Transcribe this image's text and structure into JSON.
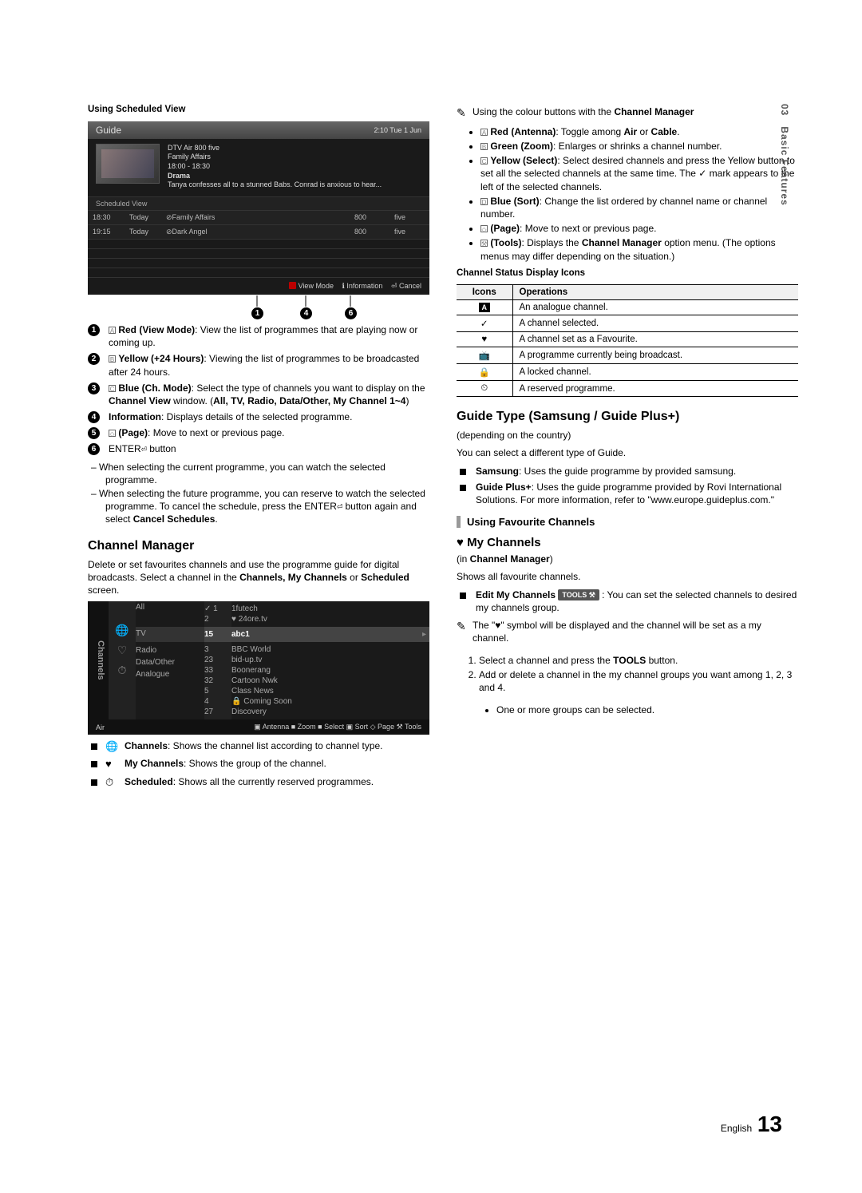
{
  "page": {
    "chapter": "03",
    "side_label": "Basic Features",
    "lang": "English",
    "num": "13"
  },
  "left": {
    "sched_title": "Using Scheduled View",
    "guide": {
      "title": "Guide",
      "clock": "2:10 Tue 1 Jun",
      "meta1": "DTV Air 800 five",
      "meta2": "Family Affairs",
      "meta3": "18:00 - 18:30",
      "meta4": "Drama",
      "meta5": "Tanya confesses all to a stunned Babs. Conrad is anxious to hear...",
      "sched_label": "Scheduled View",
      "rows": [
        {
          "t": "18:30",
          "d": "Today",
          "p": "⊘Family Affairs",
          "n": "800",
          "c": "five"
        },
        {
          "t": "19:15",
          "d": "Today",
          "p": "⊘Dark Angel",
          "n": "800",
          "c": "five"
        }
      ],
      "footer": {
        "a": "View Mode",
        "b": "Information",
        "c": "Cancel"
      },
      "arrow_nums": [
        "1",
        "4",
        "6"
      ]
    },
    "num_items": [
      {
        "n": "1",
        "pre": "A",
        "label": "Red (View Mode)",
        "text": ": View the list of programmes that are playing now or coming up."
      },
      {
        "n": "2",
        "pre": "B",
        "label": "Yellow (+24 Hours)",
        "text": ": Viewing the list of programmes to be broadcasted after 24 hours."
      },
      {
        "n": "3",
        "pre": "C",
        "label": "Blue (Ch. Mode)",
        "text": ": Select the type of channels you want to display on the ",
        "bold1": "Channel View",
        "text2": " window. (",
        "bold2": "All, TV, Radio, Data/Other, My Channel 1~4",
        "text3": ")"
      },
      {
        "n": "4",
        "label": "Information",
        "text": ": Displays details of the selected programme."
      },
      {
        "n": "5",
        "pre": "◇",
        "label": "(Page)",
        "text": ": Move to next or previous page."
      },
      {
        "n": "6",
        "label": "ENTER",
        "suffix": " button"
      }
    ],
    "sub6": [
      "When selecting the current programme, you can watch the selected programme.",
      "When selecting the future programme, you can reserve to watch the selected programme. To cancel the schedule, press the ENTER⏎ button again and select Cancel Schedules."
    ],
    "cm_title": "Channel Manager",
    "cm_intro_a": "Delete or set favourites channels and use the programme guide for digital broadcasts. Select a channel in the ",
    "cm_intro_b": "Channels, My Channels",
    "cm_intro_c": " or ",
    "cm_intro_d": "Scheduled",
    "cm_intro_e": " screen.",
    "cm_box": {
      "side": "Channels",
      "cats": [
        "All",
        "TV",
        "Radio",
        "Data/Other",
        "Analogue"
      ],
      "top_nums": [
        "✓ 1",
        "2"
      ],
      "top_names": [
        "1futech",
        "♥ 24ore.tv"
      ],
      "sel_num": "15",
      "sel_name": "abc1",
      "nums": [
        "3",
        "23",
        "33",
        "32",
        "5",
        "4",
        "27"
      ],
      "names": [
        "BBC World",
        "bid-up.tv",
        "Boonerang",
        "Cartoon Nwk",
        "Class News",
        "🔒 Coming Soon",
        "Discovery"
      ],
      "foot_left": "Air",
      "foot_right": "▣ Antenna  ■ Zoom  ■ Select  ▣ Sort  ◇ Page  ⚒ Tools"
    },
    "legend": [
      {
        "icon": "🌐",
        "b": "Channels",
        "t": ": Shows the channel list according to channel type."
      },
      {
        "icon": "♥",
        "b": "My Channels",
        "t": ": Shows the group of the channel."
      },
      {
        "icon": "⏱",
        "b": "Scheduled",
        "t": ": Shows all the currently reserved programmes."
      }
    ]
  },
  "right": {
    "note1_lead": "Using the colour buttons with the ",
    "note1_b": "Channel Manager",
    "colour_list": [
      {
        "sq": "A",
        "b": "Red (Antenna)",
        "t": ": Toggle among ",
        "b2": "Air",
        "t2": " or ",
        "b3": "Cable",
        "t3": "."
      },
      {
        "sq": "B",
        "b": "Green (Zoom)",
        "t": ": Enlarges or shrinks a channel number."
      },
      {
        "sq": "C",
        "b": "Yellow (Select)",
        "t": ": Select desired channels and press the Yellow button to set all the selected channels at the same time. The ✓ mark appears to the left of the selected channels."
      },
      {
        "sq": "D",
        "b": "Blue (Sort)",
        "t": ": Change the list ordered by channel name or channel number."
      },
      {
        "sq": "◇",
        "b": "(Page)",
        "t": ": Move to next or previous page."
      },
      {
        "sq": "⚒",
        "b": "(Tools)",
        "t": ": Displays the ",
        "b2": "Channel Manager",
        "t2": " option menu. (The options menus may differ depending on the situation.)"
      }
    ],
    "status_title": "Channel Status Display Icons",
    "status_head": [
      "Icons",
      "Operations"
    ],
    "status_rows": [
      {
        "i": "A",
        "t": "An analogue channel."
      },
      {
        "i": "✓",
        "t": "A channel selected."
      },
      {
        "i": "♥",
        "t": "A channel set as a Favourite."
      },
      {
        "i": "▭",
        "t": "A programme currently being broadcast."
      },
      {
        "i": "🔒",
        "t": "A locked channel."
      },
      {
        "i": "⏲",
        "t": "A reserved programme."
      }
    ],
    "guide_type_h": "Guide Type (Samsung / Guide Plus+)",
    "guide_type_sub": "(depending on the country)",
    "guide_type_p": "You can select a different type of Guide.",
    "guide_type_list": [
      {
        "b": "Samsung",
        "t": ": Uses the guide programme by provided samsung."
      },
      {
        "b": "Guide Plus+",
        "t": ": Uses the guide programme provided by Rovi International Solutions. For more information, refer to \"www.europe.guideplus.com.\""
      }
    ],
    "fav_h": "Using Favourite Channels",
    "mych_h": "♥ My Channels",
    "mych_in_a": "(in ",
    "mych_in_b": "Channel Manager",
    "mych_in_c": ")",
    "mych_p": "Shows all favourite channels.",
    "edit_b": "Edit My Channels",
    "edit_pill": "TOOLS ⚒",
    "edit_t": " : You can set the selected channels to desired my channels group.",
    "note2": "The \"♥\" symbol will be displayed and the channel will be set as a my channel.",
    "steps": [
      "Select a channel and press the TOOLS button.",
      "Add or delete a channel in the my channel groups you want among 1, 2, 3 and 4."
    ],
    "step_sub": "One or more groups can be selected."
  }
}
